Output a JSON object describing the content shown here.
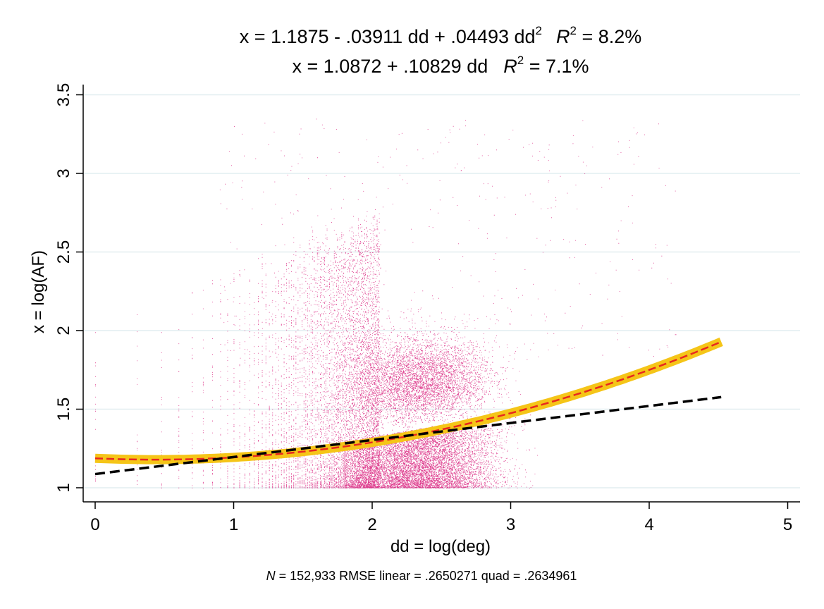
{
  "chart_data": {
    "type": "scatter",
    "title_lines": [
      {
        "main": "x = 1.1875 - .03911 dd + .04493 dd",
        "sup1": "2",
        "r": "R",
        "sup2": "2",
        "tail": " = 8.2%"
      },
      {
        "main": "x = 1.0872 + .10829 dd",
        "sup1": "",
        "r": "R",
        "sup2": "2",
        "tail": " = 7.1%"
      }
    ],
    "xlabel": "dd = log(deg)",
    "ylabel": "x = log(AF)",
    "note": {
      "n_label": "N",
      "text": " = 152,933    RMSE linear =  .2650271 quad =  .2634961"
    },
    "xlim": [
      -0.08,
      5.1
    ],
    "ylim": [
      0.95,
      3.55
    ],
    "x_ticks": [
      "0",
      "1",
      "2",
      "3",
      "4",
      "5"
    ],
    "y_ticks": [
      "1",
      "1.5",
      "2",
      "2.5",
      "3",
      "3.5"
    ],
    "grid": true,
    "scatter_color": "#d81b7a",
    "quadratic_fit": {
      "intercept": 1.1875,
      "b1": -0.03911,
      "b2": 0.04493,
      "x_range": [
        0,
        4.52
      ],
      "band_color": "#f5c518",
      "line_color": "#e8281e"
    },
    "linear_fit": {
      "intercept": 1.0872,
      "b1": 0.10829,
      "x_range": [
        0,
        4.52
      ],
      "line_color": "#000000"
    }
  }
}
